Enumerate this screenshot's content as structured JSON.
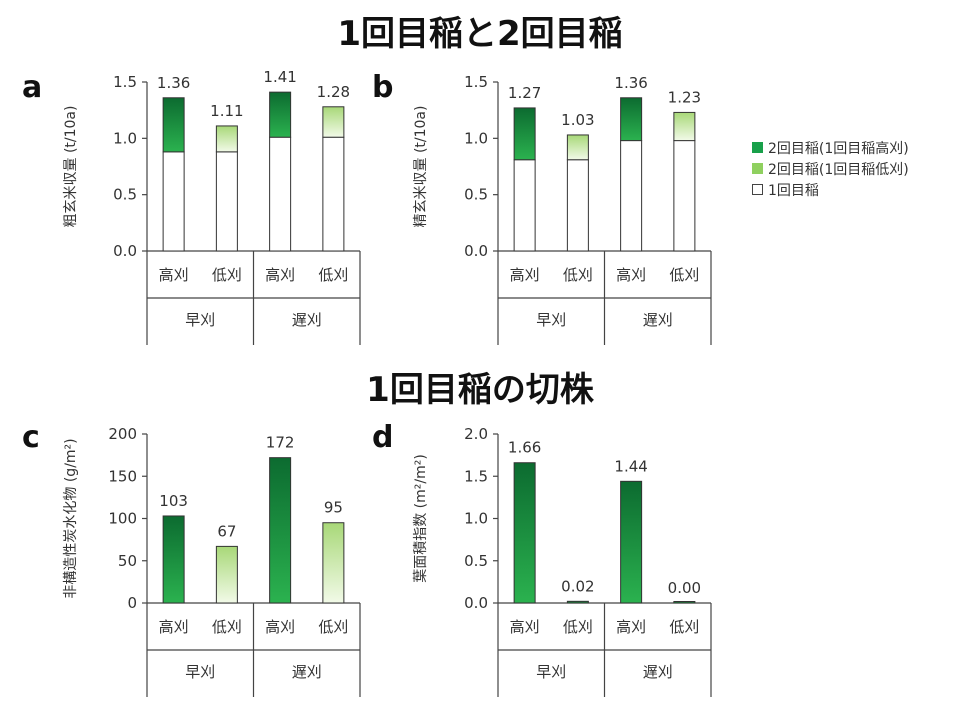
{
  "titles": {
    "top": "1回目稲と2回目稲",
    "bottom": "1回目稲の切株"
  },
  "colors": {
    "dark_green_top": "#0c6b30",
    "dark_green_bottom": "#2bb24f",
    "light_green_top": "#a8d878",
    "light_green_bottom": "#f2fae8",
    "white": "#ffffff",
    "legend_dark": "#18a04a",
    "legend_light": "#8fd05f"
  },
  "legend": {
    "items": [
      {
        "label": "2回目稲(1回目稲高刈)",
        "color": "#18a04a"
      },
      {
        "label": "2回目稲(1回目稲低刈)",
        "color": "#8fd05f"
      },
      {
        "label": "1回目稲",
        "color": "#ffffff"
      }
    ]
  },
  "chart_data": [
    {
      "panel": "a",
      "type": "bar",
      "stacked": true,
      "ylabel": "粗玄米収量 (t/10a)",
      "ylim": [
        0,
        1.5
      ],
      "yticks": [
        "0.0",
        "0.5",
        "1.0",
        "1.5"
      ],
      "yticks_values": [
        0,
        0.5,
        1.0,
        1.5
      ],
      "categories": [
        "高刈",
        "低刈",
        "高刈",
        "低刈"
      ],
      "groups": [
        {
          "label": "早刈",
          "span": [
            0,
            1
          ]
        },
        {
          "label": "遅刈",
          "span": [
            2,
            3
          ]
        }
      ],
      "series": [
        {
          "name": "1回目稲",
          "values": [
            0.88,
            0.88,
            1.01,
            1.01
          ]
        },
        {
          "name": "2回目稲",
          "values": [
            0.48,
            0.23,
            0.4,
            0.27
          ]
        }
      ],
      "data_labels": [
        "1.36",
        "1.11",
        "1.41",
        "1.28"
      ],
      "top_style": [
        "dark",
        "light",
        "dark",
        "light"
      ]
    },
    {
      "panel": "b",
      "type": "bar",
      "stacked": true,
      "ylabel": "精玄米収量 (t/10a)",
      "ylim": [
        0,
        1.5
      ],
      "yticks": [
        "0.0",
        "0.5",
        "1.0",
        "1.5"
      ],
      "yticks_values": [
        0,
        0.5,
        1.0,
        1.5
      ],
      "categories": [
        "高刈",
        "低刈",
        "高刈",
        "低刈"
      ],
      "groups": [
        {
          "label": "早刈",
          "span": [
            0,
            1
          ]
        },
        {
          "label": "遅刈",
          "span": [
            2,
            3
          ]
        }
      ],
      "series": [
        {
          "name": "1回目稲",
          "values": [
            0.81,
            0.81,
            0.98,
            0.98
          ]
        },
        {
          "name": "2回目稲",
          "values": [
            0.46,
            0.22,
            0.38,
            0.25
          ]
        }
      ],
      "data_labels": [
        "1.27",
        "1.03",
        "1.36",
        "1.23"
      ],
      "top_style": [
        "dark",
        "light",
        "dark",
        "light"
      ]
    },
    {
      "panel": "c",
      "type": "bar",
      "stacked": false,
      "ylabel": "非構造性炭水化物 (g/m²)",
      "ylim": [
        0,
        200
      ],
      "yticks": [
        "0",
        "50",
        "100",
        "150",
        "200"
      ],
      "yticks_values": [
        0,
        50,
        100,
        150,
        200
      ],
      "categories": [
        "高刈",
        "低刈",
        "高刈",
        "低刈"
      ],
      "groups": [
        {
          "label": "早刈",
          "span": [
            0,
            1
          ]
        },
        {
          "label": "遅刈",
          "span": [
            2,
            3
          ]
        }
      ],
      "series": [
        {
          "values": [
            103,
            67,
            172,
            95
          ]
        }
      ],
      "data_labels": [
        "103",
        "67",
        "172",
        "95"
      ],
      "top_style": [
        "dark",
        "light",
        "dark",
        "light"
      ]
    },
    {
      "panel": "d",
      "type": "bar",
      "stacked": false,
      "ylabel": "葉面積指数 (m²/m²)",
      "ylim": [
        0,
        2.0
      ],
      "yticks": [
        "0.0",
        "0.5",
        "1.0",
        "1.5",
        "2.0"
      ],
      "yticks_values": [
        0,
        0.5,
        1.0,
        1.5,
        2.0
      ],
      "categories": [
        "高刈",
        "低刈",
        "高刈",
        "低刈"
      ],
      "groups": [
        {
          "label": "早刈",
          "span": [
            0,
            1
          ]
        },
        {
          "label": "遅刈",
          "span": [
            2,
            3
          ]
        }
      ],
      "series": [
        {
          "values": [
            1.66,
            0.02,
            1.44,
            0.0
          ]
        }
      ],
      "data_labels": [
        "1.66",
        "0.02",
        "1.44",
        "0.00"
      ],
      "top_style": [
        "dark",
        "dark",
        "dark",
        "dark"
      ]
    }
  ]
}
